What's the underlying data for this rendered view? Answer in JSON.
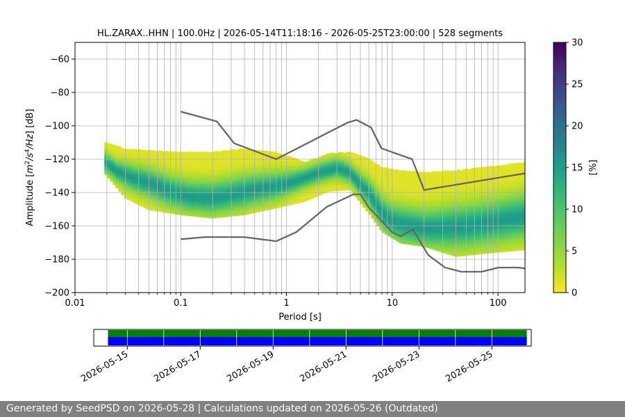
{
  "footer": {
    "text": "Generated by SeedPSD on 2026-05-28 | Calculations updated on 2026-05-26 (Outdated)"
  },
  "chart_data": [
    {
      "type": "heatmap",
      "title": "HL.ZARAX..HHN | 100.0Hz | 2026-05-14T11:18:16 - 2026-05-25T23:00:00 | 528 segments",
      "xlabel": "Period [s]",
      "ylabel_parts": [
        "Amplitude [",
        "m",
        "2",
        "/",
        "s",
        "4",
        "/",
        "Hz",
        "] [dB]"
      ],
      "x_scale": "log",
      "xlim": [
        0.01,
        180
      ],
      "ylim": [
        -200,
        -50
      ],
      "x_ticks": [
        {
          "value": 0.01,
          "label": "0.01"
        },
        {
          "value": 0.1,
          "label": "0.1"
        },
        {
          "value": 1,
          "label": "1"
        },
        {
          "value": 10,
          "label": "10"
        },
        {
          "value": 100,
          "label": "100"
        }
      ],
      "y_ticks": [
        {
          "value": -60,
          "label": "−60"
        },
        {
          "value": -80,
          "label": "−80"
        },
        {
          "value": -100,
          "label": "−100"
        },
        {
          "value": -120,
          "label": "−120"
        },
        {
          "value": -140,
          "label": "−140"
        },
        {
          "value": -160,
          "label": "−160"
        },
        {
          "value": -180,
          "label": "−180"
        },
        {
          "value": -200,
          "label": "−200"
        }
      ],
      "grid": "vertical minor and major",
      "colorbar": {
        "label": "[%]",
        "range": [
          0,
          30
        ],
        "colormap": "viridis_r",
        "ticks": [
          {
            "value": 0,
            "label": "0"
          },
          {
            "value": 5,
            "label": "5"
          },
          {
            "value": 10,
            "label": "10"
          },
          {
            "value": 15,
            "label": "15"
          },
          {
            "value": 20,
            "label": "20"
          },
          {
            "value": 25,
            "label": "25"
          },
          {
            "value": 30,
            "label": "30"
          }
        ]
      },
      "psd_mode_curve": {
        "period": [
          0.019,
          0.025,
          0.035,
          0.05,
          0.08,
          0.12,
          0.2,
          0.3,
          0.5,
          0.8,
          1.2,
          2,
          3,
          4,
          5,
          6,
          7,
          8,
          10,
          13,
          20,
          30,
          50,
          80,
          120,
          180
        ],
        "db": [
          -121,
          -127,
          -131,
          -134,
          -139,
          -142,
          -143,
          -141,
          -138,
          -136,
          -133,
          -128,
          -125,
          -128,
          -135,
          -140,
          -146,
          -152,
          -157,
          -159,
          -161,
          -161,
          -160,
          -158,
          -156,
          -154
        ]
      },
      "psd_upper_curve": {
        "period": [
          0.019,
          0.03,
          0.05,
          0.1,
          0.2,
          0.4,
          0.8,
          1.5,
          2.5,
          4,
          6,
          8,
          12,
          20,
          40,
          80,
          180
        ],
        "db": [
          -110,
          -114,
          -115,
          -116,
          -116,
          -114,
          -116,
          -122,
          -117,
          -116,
          -120,
          -125,
          -127,
          -128,
          -127,
          -125,
          -122
        ]
      },
      "psd_lower_curve": {
        "period": [
          0.019,
          0.03,
          0.05,
          0.1,
          0.2,
          0.4,
          0.8,
          1.5,
          2.5,
          4,
          6,
          8,
          12,
          20,
          40,
          80,
          180
        ],
        "db": [
          -128,
          -143,
          -150,
          -153,
          -155,
          -153,
          -149,
          -145,
          -139,
          -138,
          -152,
          -163,
          -170,
          -172,
          -178,
          -176,
          -174
        ]
      },
      "nhnm": {
        "period": [
          0.1,
          0.22,
          0.32,
          0.8,
          3.8,
          4.6,
          6.3,
          7.9,
          15.4,
          20,
          180
        ],
        "db": [
          -91.5,
          -97.4,
          -110.5,
          -120,
          -98,
          -96.5,
          -101,
          -113.5,
          -120,
          -138.5,
          -128.5
        ]
      },
      "nlnm": {
        "period": [
          0.1,
          0.17,
          0.4,
          0.8,
          1.24,
          2.4,
          4.3,
          5,
          6,
          10,
          12,
          15.6,
          21.9,
          31.6,
          45,
          70,
          101,
          154,
          180
        ],
        "db": [
          -168,
          -166.7,
          -166.7,
          -169.2,
          -163.7,
          -148.6,
          -141.1,
          -141.1,
          -149,
          -163.8,
          -166.2,
          -162.1,
          -177.5,
          -185,
          -187.5,
          -187.5,
          -185,
          -185,
          -185.5
        ]
      }
    },
    {
      "type": "timeline",
      "date_range": [
        "2026-05-14",
        "2026-05-26"
      ],
      "coverage_start": "2026-05-14T11:18:16",
      "coverage_end": "2026-05-25T23:00:00",
      "data_color": "#0000ff",
      "psd_color": "#008000",
      "tick_labels": [
        "2026-05-15",
        "2026-05-17",
        "2026-05-19",
        "2026-05-21",
        "2026-05-23",
        "2026-05-25"
      ],
      "tick_dates": [
        "2026-05-15",
        "2026-05-17",
        "2026-05-19",
        "2026-05-21",
        "2026-05-23",
        "2026-05-25"
      ]
    }
  ]
}
